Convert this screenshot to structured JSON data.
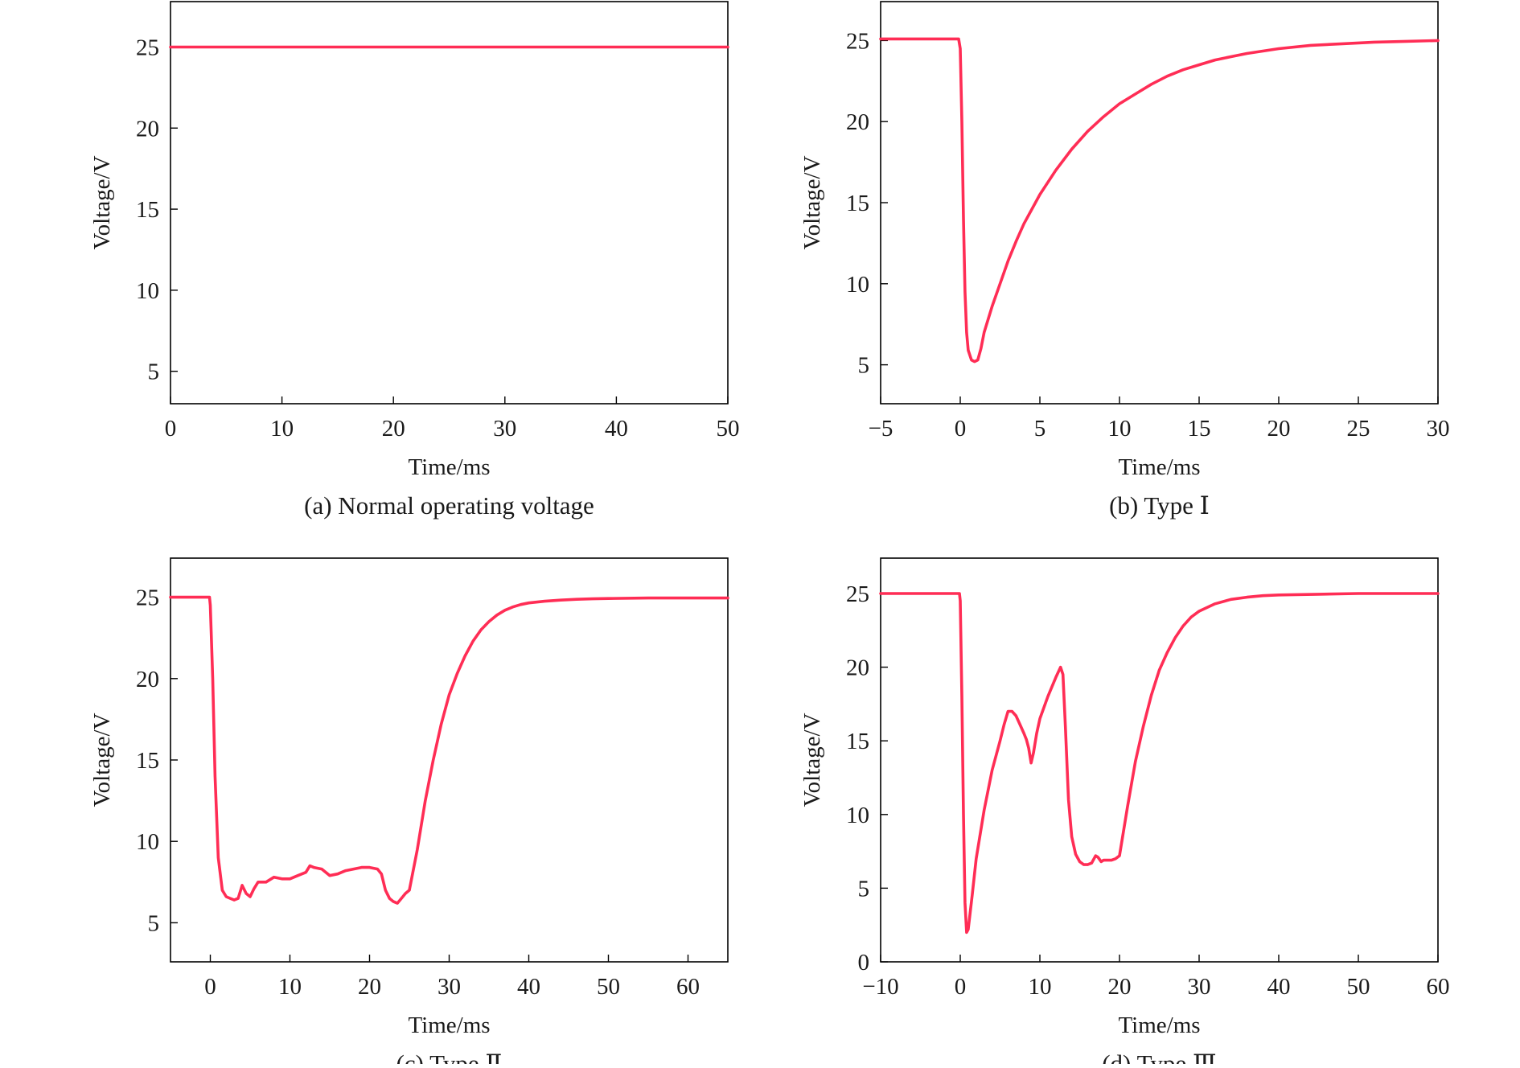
{
  "colors": {
    "line": "#ff2d55",
    "axis": "#000000",
    "background": "#ffffff"
  },
  "chart_data": [
    {
      "type": "line",
      "caption": "(a) Normal operating voltage",
      "xlabel": "Time/ms",
      "ylabel": "Voltage/V",
      "xlim": [
        0,
        50
      ],
      "ylim": [
        3,
        27.8
      ],
      "xticks": [
        0,
        10,
        20,
        30,
        40,
        50
      ],
      "yticks": [
        5,
        10,
        15,
        20,
        25
      ],
      "x": [
        0,
        50
      ],
      "y": [
        25,
        25
      ]
    },
    {
      "type": "line",
      "caption": "(b) Type Ⅰ",
      "xlabel": "Time/ms",
      "ylabel": "Voltage/V",
      "xlim": [
        -5,
        30
      ],
      "ylim": [
        2.6,
        27.4
      ],
      "xticks": [
        -5,
        0,
        5,
        10,
        15,
        20,
        25,
        30
      ],
      "xtick_labels": [
        "−5",
        "0",
        "5",
        "10",
        "15",
        "20",
        "25",
        "30"
      ],
      "yticks": [
        5,
        10,
        15,
        20,
        25
      ],
      "x": [
        -5,
        -0.1,
        0,
        0.1,
        0.2,
        0.3,
        0.4,
        0.5,
        0.7,
        0.9,
        1.1,
        1.3,
        1.5,
        2,
        2.5,
        3,
        3.5,
        4,
        5,
        6,
        7,
        8,
        9,
        10,
        11,
        12,
        13,
        14,
        15,
        16,
        17,
        18,
        20,
        22,
        24,
        26,
        28,
        30
      ],
      "y": [
        25.1,
        25.1,
        24.5,
        20,
        14,
        9.5,
        7,
        5.9,
        5.3,
        5.2,
        5.3,
        6.0,
        7.0,
        8.6,
        10.0,
        11.4,
        12.6,
        13.7,
        15.5,
        17.0,
        18.3,
        19.4,
        20.3,
        21.1,
        21.7,
        22.3,
        22.8,
        23.2,
        23.5,
        23.8,
        24.0,
        24.2,
        24.5,
        24.7,
        24.8,
        24.9,
        24.95,
        25.0
      ]
    },
    {
      "type": "line",
      "caption": "(c) Type Ⅱ",
      "xlabel": "Time/ms",
      "ylabel": "Voltage/V",
      "xlim": [
        -5,
        65
      ],
      "ylim": [
        2.6,
        27.4
      ],
      "xticks": [
        0,
        10,
        20,
        30,
        40,
        50,
        60
      ],
      "yticks": [
        5,
        10,
        15,
        20,
        25
      ],
      "x": [
        -5,
        -0.1,
        0,
        0.3,
        0.6,
        1,
        1.5,
        2,
        2.5,
        3,
        3.5,
        4,
        4.5,
        5,
        5.5,
        6,
        7,
        8,
        9,
        10,
        11,
        12,
        12.5,
        13,
        14,
        15,
        16,
        17,
        18,
        19,
        20,
        21,
        21.5,
        22,
        22.5,
        23,
        23.5,
        24,
        24.5,
        25,
        26,
        27,
        28,
        29,
        30,
        31,
        32,
        33,
        34,
        35,
        36,
        37,
        38,
        39,
        40,
        42,
        44,
        46,
        48,
        50,
        55,
        60,
        65
      ],
      "y": [
        25.0,
        25.0,
        24.5,
        20,
        14,
        9,
        7,
        6.6,
        6.5,
        6.4,
        6.5,
        7.3,
        6.8,
        6.6,
        7.1,
        7.5,
        7.5,
        7.8,
        7.7,
        7.7,
        7.9,
        8.1,
        8.5,
        8.4,
        8.3,
        7.9,
        8.0,
        8.2,
        8.3,
        8.4,
        8.4,
        8.3,
        8.0,
        7.0,
        6.5,
        6.3,
        6.2,
        6.5,
        6.8,
        7.0,
        9.5,
        12.5,
        15,
        17.2,
        19,
        20.3,
        21.4,
        22.3,
        23.0,
        23.5,
        23.9,
        24.2,
        24.4,
        24.55,
        24.65,
        24.75,
        24.82,
        24.87,
        24.9,
        24.92,
        24.95,
        24.95,
        24.95
      ]
    },
    {
      "type": "line",
      "caption": "(d) Type Ⅲ",
      "xlabel": "Time/ms",
      "ylabel": "Voltage/V",
      "xlim": [
        -10,
        60
      ],
      "ylim": [
        0,
        27.4
      ],
      "xticks": [
        -10,
        0,
        10,
        20,
        30,
        40,
        50,
        60
      ],
      "xtick_labels": [
        "−10",
        "0",
        "10",
        "20",
        "30",
        "40",
        "50",
        "60"
      ],
      "yticks": [
        0,
        5,
        10,
        15,
        20,
        25
      ],
      "x": [
        -10,
        -0.1,
        0,
        0.2,
        0.4,
        0.6,
        0.8,
        1,
        1.5,
        2,
        3,
        4,
        5,
        5.5,
        6,
        6.5,
        7,
        7.5,
        8,
        8.3,
        8.6,
        8.9,
        9.2,
        9.6,
        10,
        11,
        12,
        12.6,
        12.9,
        13.2,
        13.6,
        14,
        14.5,
        15,
        15.5,
        16,
        16.5,
        17,
        17.3,
        17.7,
        18,
        19,
        19.5,
        20,
        21,
        22,
        23,
        24,
        25,
        26,
        27,
        28,
        29,
        30,
        32,
        34,
        36,
        38,
        40,
        45,
        50,
        55,
        60
      ],
      "y": [
        25.0,
        25.0,
        24.5,
        18,
        10,
        4,
        2.0,
        2.2,
        4.5,
        7,
        10.3,
        13,
        15,
        16.1,
        17.0,
        17.0,
        16.7,
        16.1,
        15.5,
        15.1,
        14.5,
        13.5,
        14.2,
        15.5,
        16.5,
        18,
        19.3,
        20.0,
        19.5,
        16,
        11,
        8.5,
        7.3,
        6.8,
        6.6,
        6.6,
        6.7,
        7.2,
        7.1,
        6.8,
        6.9,
        6.9,
        7.0,
        7.2,
        10.5,
        13.6,
        16,
        18.1,
        19.8,
        21.0,
        22.0,
        22.8,
        23.4,
        23.8,
        24.3,
        24.6,
        24.75,
        24.85,
        24.9,
        24.95,
        25.0,
        25.0,
        25.0
      ]
    }
  ]
}
